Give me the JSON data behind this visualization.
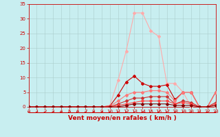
{
  "xlabel": "Vent moyen/en rafales ( km/h )",
  "xlim": [
    0,
    23
  ],
  "ylim": [
    0,
    35
  ],
  "yticks": [
    0,
    5,
    10,
    15,
    20,
    25,
    30,
    35
  ],
  "xticks": [
    0,
    1,
    2,
    3,
    4,
    5,
    6,
    7,
    8,
    9,
    10,
    11,
    12,
    13,
    14,
    15,
    16,
    17,
    18,
    19,
    20,
    21,
    22,
    23
  ],
  "background_color": "#c8eef0",
  "grid_color": "#aacccc",
  "series": [
    {
      "x": [
        0,
        1,
        2,
        3,
        4,
        5,
        6,
        7,
        8,
        9,
        10,
        11,
        12,
        13,
        14,
        15,
        16,
        17,
        18,
        19,
        20,
        21,
        22,
        23
      ],
      "y": [
        0,
        0,
        0,
        0,
        0,
        0,
        0,
        0,
        0,
        0,
        0.5,
        9,
        19,
        32,
        32,
        26,
        24,
        8,
        8,
        5,
        0,
        0,
        0,
        0
      ],
      "color": "#ffaaaa",
      "lw": 0.8,
      "marker": "D",
      "ms": 2.0
    },
    {
      "x": [
        0,
        1,
        2,
        3,
        4,
        5,
        6,
        7,
        8,
        9,
        10,
        11,
        12,
        13,
        14,
        15,
        16,
        17,
        18,
        19,
        20,
        21,
        22,
        23
      ],
      "y": [
        0,
        0,
        0,
        0,
        0,
        0,
        0,
        0,
        0,
        0,
        0.3,
        4,
        8.5,
        10.5,
        8,
        7,
        7,
        7.5,
        2.5,
        5,
        5,
        0,
        0,
        5
      ],
      "color": "#cc0000",
      "lw": 0.8,
      "marker": "D",
      "ms": 2.0
    },
    {
      "x": [
        0,
        1,
        2,
        3,
        4,
        5,
        6,
        7,
        8,
        9,
        10,
        11,
        12,
        13,
        14,
        15,
        16,
        17,
        18,
        19,
        20,
        21,
        22,
        23
      ],
      "y": [
        0,
        0,
        0,
        0,
        0,
        0,
        0,
        0,
        0,
        0,
        0.2,
        2,
        4,
        5,
        5,
        5.5,
        5.5,
        5,
        2,
        5,
        5,
        0,
        0,
        5
      ],
      "color": "#ff7777",
      "lw": 0.8,
      "marker": "D",
      "ms": 2.0
    },
    {
      "x": [
        0,
        1,
        2,
        3,
        4,
        5,
        6,
        7,
        8,
        9,
        10,
        11,
        12,
        13,
        14,
        15,
        16,
        17,
        18,
        19,
        20,
        21,
        22,
        23
      ],
      "y": [
        0,
        0,
        0,
        0,
        0,
        0,
        0,
        0,
        0,
        0,
        0,
        1,
        2,
        3,
        3,
        3.5,
        3.5,
        3.5,
        1,
        2,
        1.5,
        0,
        0,
        1.5
      ],
      "color": "#cc3333",
      "lw": 0.8,
      "marker": "D",
      "ms": 2.0
    },
    {
      "x": [
        0,
        1,
        2,
        3,
        4,
        5,
        6,
        7,
        8,
        9,
        10,
        11,
        12,
        13,
        14,
        15,
        16,
        17,
        18,
        19,
        20,
        21,
        22,
        23
      ],
      "y": [
        0,
        0,
        0,
        0,
        0,
        0,
        0,
        0,
        0,
        0,
        0,
        0.5,
        1,
        1.5,
        2,
        2,
        2,
        2,
        1,
        1.5,
        1,
        0,
        0,
        1
      ],
      "color": "#ff4444",
      "lw": 0.8,
      "marker": "D",
      "ms": 2.0
    },
    {
      "x": [
        0,
        1,
        2,
        3,
        4,
        5,
        6,
        7,
        8,
        9,
        10,
        11,
        12,
        13,
        14,
        15,
        16,
        17,
        18,
        19,
        20,
        21,
        22,
        23
      ],
      "y": [
        0,
        0,
        0,
        0,
        0,
        0,
        0,
        0,
        0,
        0,
        0,
        0,
        0.5,
        1,
        1,
        1,
        1,
        1,
        0.5,
        0.5,
        0.5,
        0,
        0,
        0.5
      ],
      "color": "#880000",
      "lw": 0.8,
      "marker": "D",
      "ms": 2.0
    }
  ],
  "arrow_color": "#cc0000",
  "tick_color": "#cc0000",
  "label_color": "#cc0000",
  "tick_fontsize": 5.0,
  "label_fontsize": 6.5
}
